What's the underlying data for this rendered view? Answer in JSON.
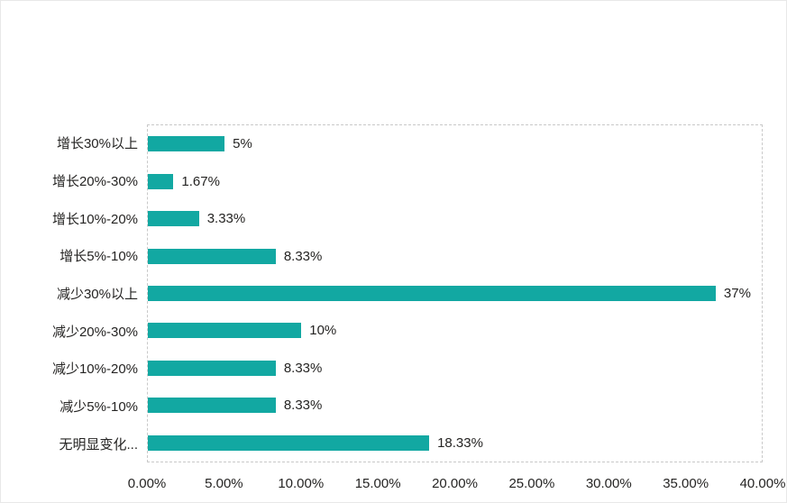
{
  "colors": {
    "bar": "#12A8A2",
    "text": "#252423",
    "plot_border": "#C9C9C9",
    "background": "#FFFFFF"
  },
  "chart_data": {
    "type": "bar",
    "orientation": "horizontal",
    "categories": [
      "增长30%以上",
      "增长20%-30%",
      "增长10%-20%",
      "增长5%-10%",
      "减少30%以上",
      "减少20%-30%",
      "减少10%-20%",
      "减少5%-10%",
      "无明显变化..."
    ],
    "values": [
      5,
      1.67,
      3.33,
      8.33,
      37,
      10,
      8.33,
      8.33,
      18.33
    ],
    "value_labels": [
      "5%",
      "1.67%",
      "3.33%",
      "8.33%",
      "37%",
      "10%",
      "8.33%",
      "8.33%",
      "18.33%"
    ],
    "x_ticks": [
      "0.00%",
      "5.00%",
      "10.00%",
      "15.00%",
      "20.00%",
      "25.00%",
      "30.00%",
      "35.00%",
      "40.00%"
    ],
    "xlim": [
      0,
      40
    ],
    "bar_color": "#12A8A2",
    "grid": false,
    "legend": false,
    "plot_border_style": "dashed"
  }
}
